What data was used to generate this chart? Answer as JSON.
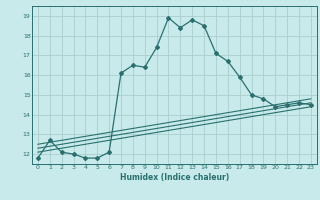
{
  "xlabel": "Humidex (Indice chaleur)",
  "bg_color": "#c8eaea",
  "grid_color": "#aacece",
  "line_color": "#2a7070",
  "xlim": [
    -0.5,
    23.5
  ],
  "ylim": [
    11.5,
    19.5
  ],
  "yticks": [
    12,
    13,
    14,
    15,
    16,
    17,
    18,
    19
  ],
  "xticks": [
    0,
    1,
    2,
    3,
    4,
    5,
    6,
    7,
    8,
    9,
    10,
    11,
    12,
    13,
    14,
    15,
    16,
    17,
    18,
    19,
    20,
    21,
    22,
    23
  ],
  "main_x": [
    0,
    1,
    2,
    3,
    4,
    5,
    6,
    7,
    8,
    9,
    10,
    11,
    12,
    13,
    14,
    15,
    16,
    17,
    18,
    19,
    20,
    21,
    22,
    23
  ],
  "main_y": [
    11.8,
    12.7,
    12.1,
    12.0,
    11.8,
    11.8,
    12.1,
    16.1,
    16.5,
    16.4,
    17.4,
    18.9,
    18.4,
    18.8,
    18.5,
    17.1,
    16.7,
    15.9,
    15.0,
    14.8,
    14.4,
    14.5,
    14.6,
    14.5
  ],
  "line1_x": [
    0,
    23
  ],
  "line1_y": [
    12.1,
    14.4
  ],
  "line2_x": [
    0,
    23
  ],
  "line2_y": [
    12.3,
    14.6
  ],
  "line3_x": [
    0,
    23
  ],
  "line3_y": [
    12.5,
    14.8
  ]
}
